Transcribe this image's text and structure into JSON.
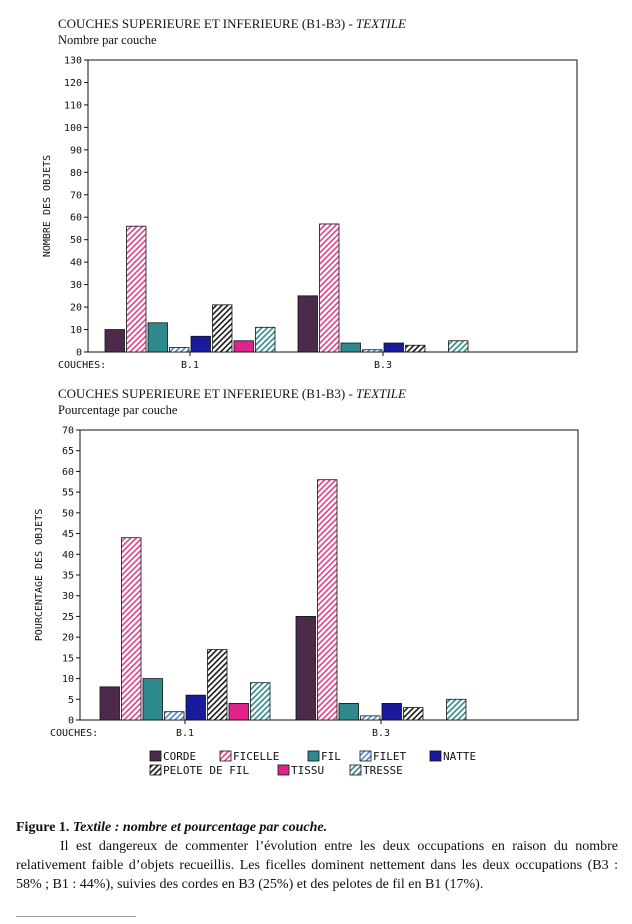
{
  "colors": {
    "CORDE": "#4b2a4a",
    "FICELLE": "#e0408a",
    "FIL": "#2e8a8c",
    "FILET": "#4d86d6",
    "NATTE": "#1a1a9c",
    "PELOTE DE FIL": "#1a1a1a",
    "TISSU": "#e0228a",
    "TRESSE": "#2e8a8c"
  },
  "legend_items": [
    {
      "label": "CORDE",
      "pattern": "solid"
    },
    {
      "label": "FICELLE",
      "pattern": "hatch"
    },
    {
      "label": "FIL",
      "pattern": "solid"
    },
    {
      "label": "FILET",
      "pattern": "hatch"
    },
    {
      "label": "NATTE",
      "pattern": "solid"
    },
    {
      "label": "PELOTE DE FIL",
      "pattern": "hatch"
    },
    {
      "label": "TISSU",
      "pattern": "solid"
    },
    {
      "label": "TRESSE",
      "pattern": "hatch"
    }
  ],
  "chart_data": [
    {
      "type": "bar",
      "title": "COUCHES SUPERIEURE ET INFERIEURE (B1-B3) - ",
      "title_italic": "TEXTILE",
      "subtitle": "Nombre par couche",
      "ylabel": "NOMBRE DES OBJETS",
      "xlabel": "COUCHES:",
      "ylim": [
        0,
        130
      ],
      "yticks": [
        0,
        10,
        20,
        30,
        40,
        50,
        60,
        70,
        80,
        90,
        100,
        110,
        120,
        130
      ],
      "categories": [
        "B.1",
        "B.3"
      ],
      "series": [
        {
          "name": "CORDE",
          "values": [
            10,
            25
          ]
        },
        {
          "name": "FICELLE",
          "values": [
            56,
            57
          ]
        },
        {
          "name": "FIL",
          "values": [
            13,
            4
          ]
        },
        {
          "name": "FILET",
          "values": [
            2,
            1
          ]
        },
        {
          "name": "NATTE",
          "values": [
            7,
            4
          ]
        },
        {
          "name": "PELOTE DE FIL",
          "values": [
            21,
            3
          ]
        },
        {
          "name": "TISSU",
          "values": [
            5,
            0
          ]
        },
        {
          "name": "TRESSE",
          "values": [
            11,
            5
          ]
        }
      ]
    },
    {
      "type": "bar",
      "title": "COUCHES SUPERIEURE ET INFERIEURE (B1-B3) - ",
      "title_italic": "TEXTILE",
      "subtitle": "Pourcentage par couche",
      "ylabel": "POURCENTAGE DES OBJETS",
      "xlabel": "COUCHES:",
      "ylim": [
        0,
        70
      ],
      "yticks": [
        0,
        5,
        10,
        15,
        20,
        25,
        30,
        35,
        40,
        45,
        50,
        55,
        60,
        65,
        70
      ],
      "categories": [
        "B.1",
        "B.3"
      ],
      "series": [
        {
          "name": "CORDE",
          "values": [
            8,
            25
          ]
        },
        {
          "name": "FICELLE",
          "values": [
            44,
            58
          ]
        },
        {
          "name": "FIL",
          "values": [
            10,
            4
          ]
        },
        {
          "name": "FILET",
          "values": [
            2,
            1
          ]
        },
        {
          "name": "NATTE",
          "values": [
            6,
            4
          ]
        },
        {
          "name": "PELOTE DE FIL",
          "values": [
            17,
            3
          ]
        },
        {
          "name": "TISSU",
          "values": [
            4,
            0
          ]
        },
        {
          "name": "TRESSE",
          "values": [
            9,
            5
          ]
        }
      ]
    }
  ],
  "caption": {
    "figure_label": "Figure 1",
    "figure_title": "Textile : nombre et pourcentage par couche.",
    "text": "Il est dangereux de commenter l’évolution entre les deux occupations en raison du nombre relativement faible d’objets recueillis. Les ficelles dominent nettement dans les deux occupations (B3 : 58% ; B1 : 44%), suivies des cordes en B3 (25%) et des pelotes de fil en B1 (17%)."
  }
}
